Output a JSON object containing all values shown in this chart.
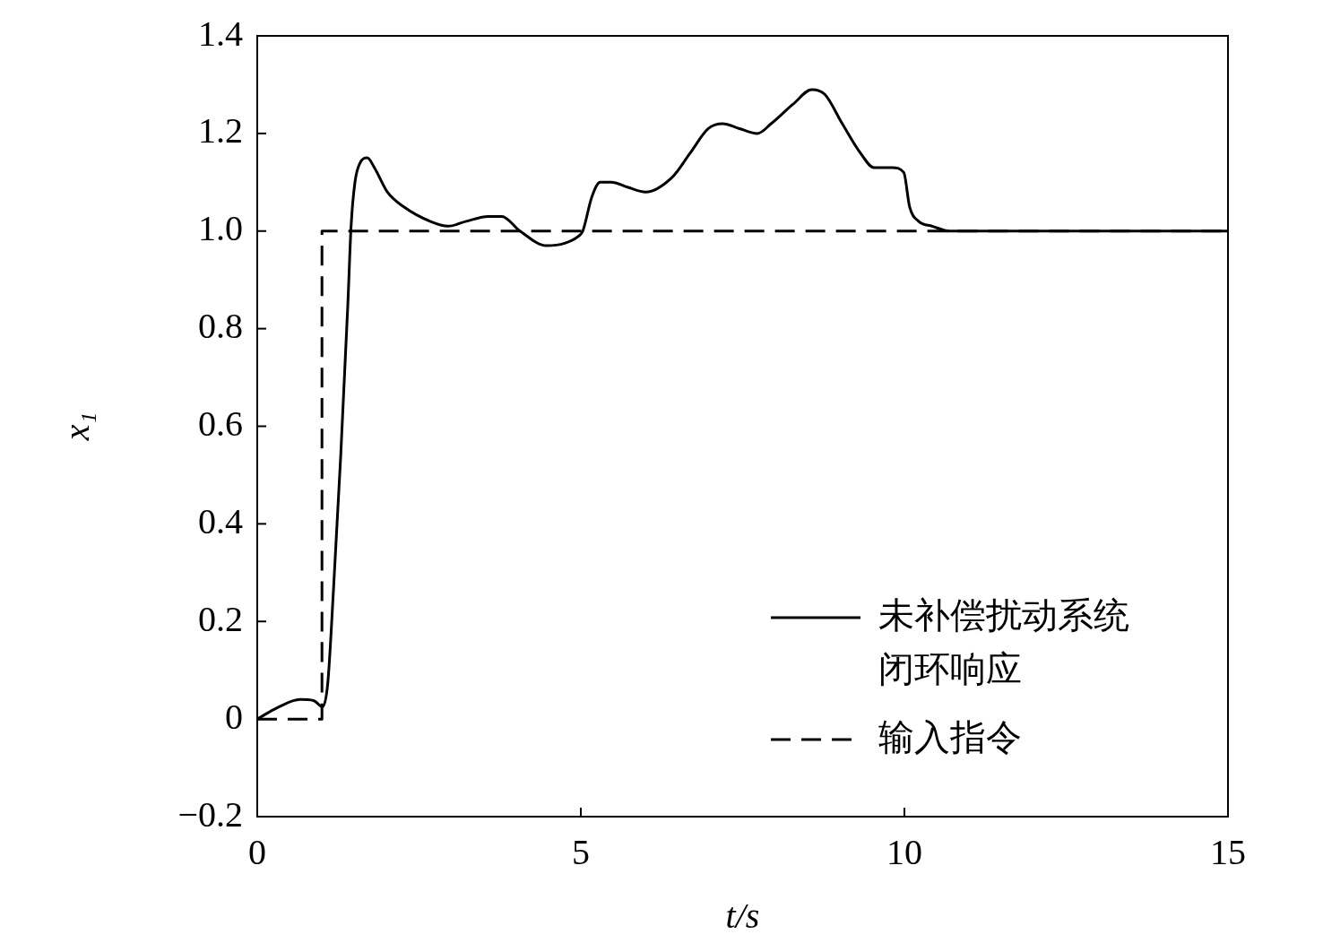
{
  "chart_data": {
    "type": "line",
    "xlabel": "t/s",
    "ylabel": "x₁",
    "xlim": [
      0,
      15
    ],
    "xticks": [
      0,
      5,
      10,
      15
    ],
    "ylim": [
      -0.2,
      1.4
    ],
    "yticks": [
      {
        "value": -0.2,
        "label": "−0.2"
      },
      0,
      0.2,
      0.4,
      0.6,
      0.8,
      {
        "value": 1,
        "label": "1.0"
      },
      1.2,
      1.4
    ],
    "grid": false,
    "legend": "bottom right",
    "marker": "none",
    "series": [
      {
        "name": "未补偿扰动系统闭环响应",
        "color": "#000000",
        "line_style": "solid",
        "x": [
          0,
          0.32,
          0.66,
          0.87,
          1.01,
          1.09,
          1.18,
          1.29,
          1.4,
          1.45,
          1.51,
          1.59,
          1.7,
          1.81,
          2.01,
          2.26,
          2.67,
          2.95,
          3.23,
          3.57,
          3.78,
          4.06,
          4.47,
          4.75,
          4.97,
          5.03,
          5.17,
          5.3,
          5.47,
          5.72,
          6.0,
          6.41,
          6.69,
          6.97,
          7.19,
          7.45,
          7.73,
          7.94,
          8.28,
          8.57,
          8.77,
          9.04,
          9.32,
          9.53,
          9.81,
          9.99,
          10.08,
          10.22,
          10.43,
          10.7,
          11.26,
          15
        ],
        "values": [
          0,
          0.024,
          0.04,
          0.038,
          0.025,
          0.074,
          0.27,
          0.54,
          0.85,
          1.01,
          1.1,
          1.14,
          1.15,
          1.13,
          1.08,
          1.05,
          1.02,
          1.01,
          1.02,
          1.03,
          1.03,
          1.0,
          0.97,
          0.975,
          0.99,
          1.0,
          1.07,
          1.1,
          1.1,
          1.09,
          1.08,
          1.11,
          1.16,
          1.21,
          1.22,
          1.21,
          1.2,
          1.22,
          1.26,
          1.29,
          1.28,
          1.22,
          1.16,
          1.13,
          1.13,
          1.12,
          1.05,
          1.02,
          1.01,
          1.0,
          1.0,
          1.0
        ]
      },
      {
        "name": "输入指令",
        "color": "#000000",
        "line_style": "dashed",
        "x": [
          0,
          1,
          1,
          15
        ],
        "values": [
          0,
          0,
          1,
          1
        ]
      }
    ]
  }
}
